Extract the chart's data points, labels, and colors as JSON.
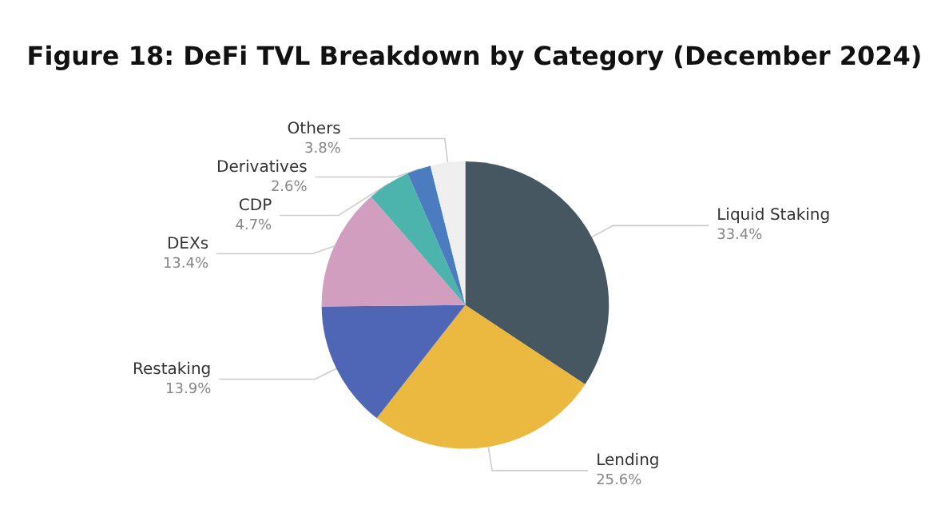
{
  "chart_data": {
    "type": "pie",
    "title": "Figure 18: DeFi TVL Breakdown by Category (December 2024)",
    "categories": [
      "Liquid Staking",
      "Lending",
      "Restaking",
      "DEXs",
      "CDP",
      "Derivatives",
      "Others"
    ],
    "values": [
      33.4,
      25.6,
      13.9,
      13.4,
      4.7,
      2.6,
      3.8
    ],
    "value_labels": [
      "33.4%",
      "25.6%",
      "13.9%",
      "13.4%",
      "4.7%",
      "2.6%",
      "3.8%"
    ],
    "colors": [
      "#465762",
      "#ecb940",
      "#4f65b5",
      "#d29ebf",
      "#4db3ad",
      "#4c7cc0",
      "#efefef"
    ]
  }
}
